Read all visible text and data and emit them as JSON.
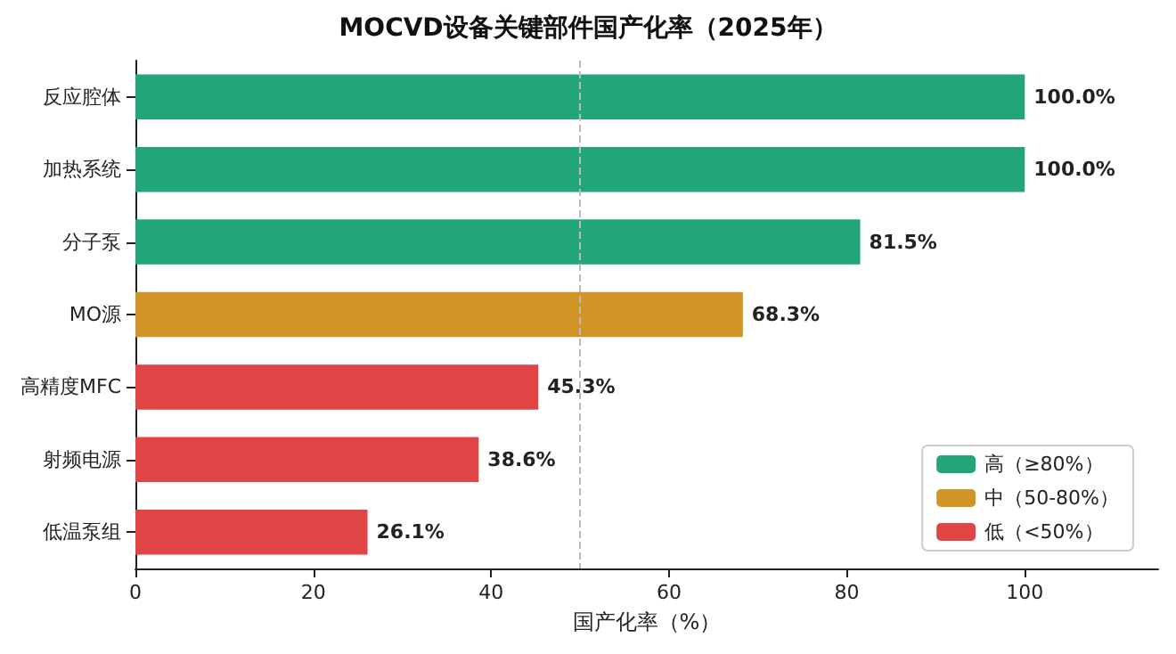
{
  "chart_data": {
    "type": "bar",
    "orientation": "horizontal",
    "title": "MOCVD设备关键部件国产化率（2025年）",
    "xlabel": "国产化率（%）",
    "categories": [
      "反应腔体",
      "加热系统",
      "分子泵",
      "MO源",
      "高精度MFC",
      "射频电源",
      "低温泵组"
    ],
    "series": [
      {
        "name": "高（≥80%）",
        "color": "#22a57b",
        "values": [
          100.0,
          100.0,
          81.5,
          null,
          null,
          null,
          null
        ],
        "value_labels": [
          "100.0%",
          "100.0%",
          "81.5%",
          null,
          null,
          null,
          null
        ]
      },
      {
        "name": "中（50-80%）",
        "color": "#d09526",
        "values": [
          null,
          null,
          null,
          68.3,
          null,
          null,
          null
        ],
        "value_labels": [
          null,
          null,
          null,
          "68.3%",
          null,
          null,
          null
        ]
      },
      {
        "name": "低（<50%）",
        "color": "#e04444",
        "values": [
          null,
          null,
          null,
          null,
          45.3,
          38.6,
          26.1
        ],
        "value_labels": [
          null,
          null,
          null,
          null,
          "45.3%",
          "38.6%",
          "26.1%"
        ]
      }
    ],
    "xlim": [
      0,
      115
    ],
    "xticks": [
      0,
      20,
      40,
      60,
      80,
      100
    ],
    "ref_lines": [
      {
        "axis": "x",
        "value": 50,
        "label": null,
        "color": "#bbbbbb",
        "line_style": "dashed"
      }
    ],
    "grid": false,
    "legend": "bottom right"
  }
}
